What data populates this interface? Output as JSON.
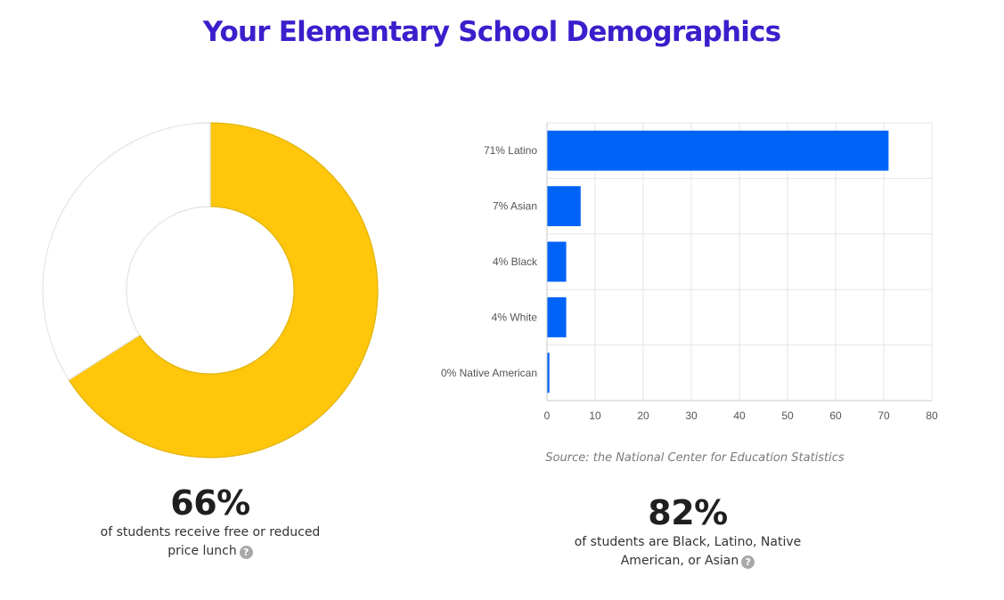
{
  "title": "Your Elementary School Demographics",
  "source_note": "Source: the National Center for Education Statistics",
  "lunch_stat": {
    "value": "66%",
    "caption": "of students receive free or reduced price lunch",
    "help_icon": "question-circle-icon"
  },
  "minority_stat": {
    "value": "82%",
    "caption": "of students are Black, Latino, Native American, or Asian",
    "help_icon": "question-circle-icon"
  },
  "colors": {
    "title": "#3b1fcc",
    "donut_fill": "#ffc60b",
    "donut_remainder": "#ffffff",
    "bar_fill": "#0063f7"
  },
  "chart_data": [
    {
      "type": "pie",
      "style": "donut",
      "slices": [
        {
          "value": 66,
          "color": "#ffc60b"
        },
        {
          "value": 34,
          "color": "#ffffff"
        }
      ]
    },
    {
      "type": "bar",
      "orientation": "horizontal",
      "categories": [
        "71% Latino",
        "7% Asian",
        "4% Black",
        "4% White",
        "0% Native American"
      ],
      "values": [
        71,
        7,
        4,
        4,
        0.5
      ],
      "xlim": [
        0,
        80
      ],
      "xticks": [
        "0",
        "10",
        "20",
        "30",
        "40",
        "50",
        "60",
        "70",
        "80"
      ],
      "grid": true,
      "legend": "none",
      "bar_color": "#0063f7"
    }
  ]
}
